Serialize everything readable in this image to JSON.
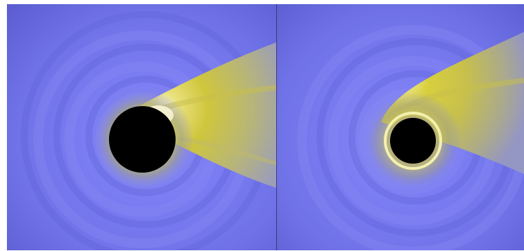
{
  "panels": [
    {
      "id": "left",
      "hole": "black-disk",
      "colors": {
        "background": "#6c6ee6",
        "hole": "#000000",
        "tail": "#d3cc47",
        "glow": "#f6f2c8"
      }
    },
    {
      "id": "right",
      "hole": "black-disk",
      "colors": {
        "background": "#6c6ee6",
        "hole": "#000000",
        "tail": "#d3cc47",
        "glow": "#f6f2c8",
        "ring": "#f4f0b0"
      }
    }
  ]
}
